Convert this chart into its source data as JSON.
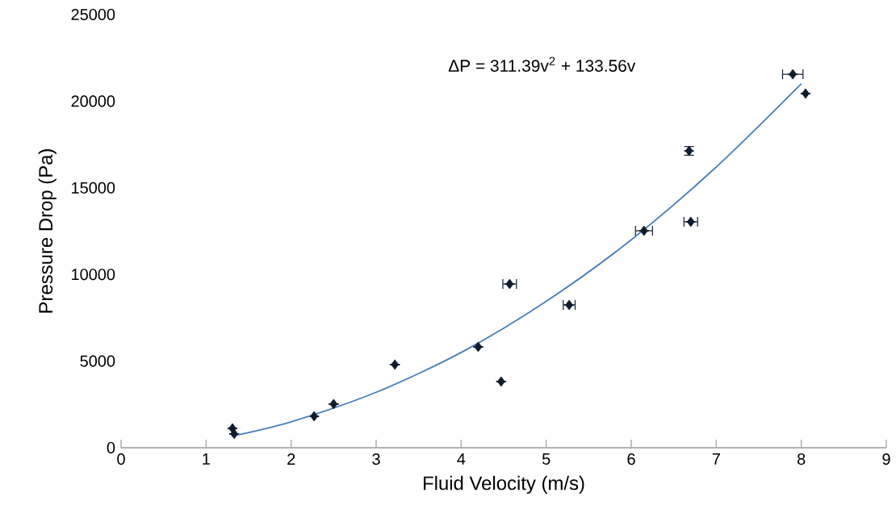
{
  "chart_data": {
    "type": "scatter",
    "xlabel": "Fluid Velocity (m/s)",
    "ylabel": "Pressure Drop (Pa)",
    "annotations": [
      "ΔP = 311.39v$^{2}$ + 133.56v"
    ],
    "xlim": [
      0,
      9
    ],
    "ylim": [
      0,
      25000
    ],
    "xticks": [
      0,
      1,
      2,
      3,
      4,
      5,
      6,
      7,
      8,
      9
    ],
    "yticks": [
      0,
      5000,
      10000,
      15000,
      20000,
      25000
    ],
    "series": [
      {
        "color": "#0f1c2e",
        "marker": "diamond",
        "x": [
          1.31,
          1.33,
          2.27,
          2.5,
          3.22,
          4.2,
          4.47,
          4.57,
          5.27,
          6.15,
          6.68,
          6.7,
          7.9,
          8.05
        ],
        "values": [
          1120,
          800,
          1820,
          2520,
          4800,
          5820,
          3820,
          9450,
          8240,
          12520,
          17130,
          13040,
          21550,
          20440
        ],
        "xerrors": [
          null,
          null,
          null,
          null,
          null,
          null,
          null,
          0.08,
          0.07,
          0.1,
          null,
          0.08,
          0.12,
          null
        ],
        "errors": [
          null,
          null,
          null,
          null,
          null,
          null,
          null,
          null,
          null,
          null,
          250,
          null,
          null,
          null
        ]
      },
      {
        "type": "line",
        "color": "#4a7ebb",
        "marker": "none",
        "x": [
          1.33,
          2,
          3,
          4,
          5,
          6,
          7,
          8
        ],
        "values": [
          700,
          1500,
          3200,
          5500,
          8450,
          12000,
          16200,
          21000
        ]
      }
    ]
  }
}
